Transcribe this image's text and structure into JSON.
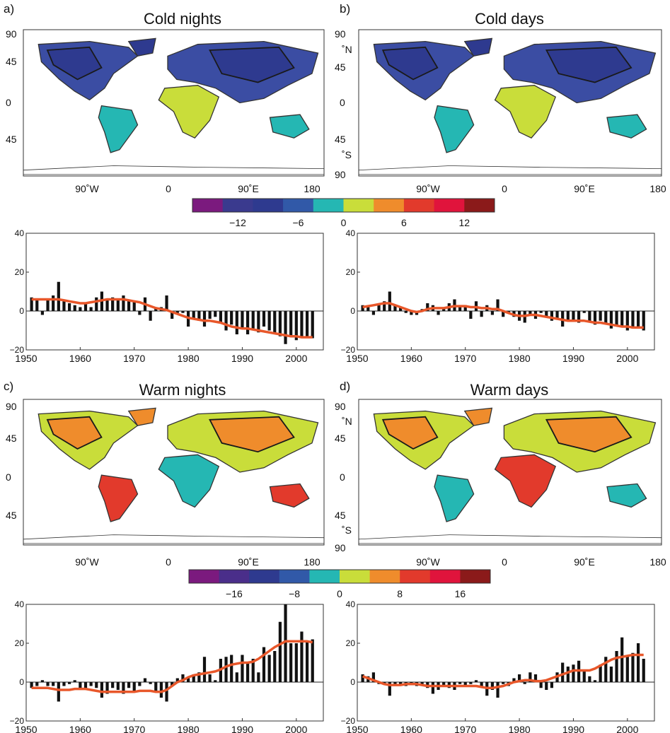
{
  "panels": [
    {
      "letter": "a)",
      "title": "Cold nights",
      "lat_labels": [
        "90",
        "45",
        "0",
        "45",
        ""
      ],
      "lon_labels": [
        "90˚W",
        "0",
        "90˚E",
        "180"
      ],
      "lat_side": "left",
      "map_colors": [
        "#3b4da3",
        "#2e3a8f",
        "#25b7b3",
        "#c9dd3a"
      ]
    },
    {
      "letter": "b)",
      "title": "Cold days",
      "lat_labels": [
        "90",
        "˚N",
        "45",
        "0",
        "45",
        "˚S",
        "90"
      ],
      "lon_labels": [
        "90˚W",
        "0",
        "90˚E",
        "180"
      ],
      "lat_side": "left",
      "map_colors": [
        "#3b4da3",
        "#2e3a8f",
        "#25b7b3",
        "#c9dd3a"
      ]
    },
    {
      "letter": "c)",
      "title": "Warm nights",
      "lat_labels": [
        "90",
        "45",
        "0",
        "45",
        ""
      ],
      "lon_labels": [
        "90˚W",
        "0",
        "90˚E",
        "180"
      ],
      "lat_side": "left",
      "map_colors": [
        "#c9dd3a",
        "#ef8c2c",
        "#e23a2c",
        "#25b7b3"
      ]
    },
    {
      "letter": "d)",
      "title": "Warm days",
      "lat_labels": [
        "90",
        "˚N",
        "45",
        "0",
        "45",
        "˚S",
        "90"
      ],
      "lon_labels": [
        "90˚W",
        "0",
        "90˚E",
        "180"
      ],
      "lat_side": "left",
      "map_colors": [
        "#c9dd3a",
        "#ef8c2c",
        "#25b7b3",
        "#e23a2c"
      ]
    }
  ],
  "colorbars": [
    {
      "colors": [
        "#7b1a7e",
        "#3a3a8e",
        "#2e3a8f",
        "#3159a8",
        "#25b7b3",
        "#c9dd3a",
        "#ef8c2c",
        "#e23a2c",
        "#e0143c",
        "#8b1a1a"
      ],
      "labels": [
        "−12",
        "−6",
        "0",
        "6",
        "12"
      ]
    },
    {
      "colors": [
        "#7b1a7e",
        "#4a2e8a",
        "#2e3a8f",
        "#3159a8",
        "#25b7b3",
        "#c9dd3a",
        "#ef8c2c",
        "#e23a2c",
        "#e0143c",
        "#8b1a1a"
      ],
      "labels": [
        "−16",
        "−8",
        "0",
        "8",
        "16"
      ]
    }
  ],
  "chart_data": [
    {
      "type": "bar",
      "panel": "a",
      "x": [
        1951,
        1952,
        1953,
        1954,
        1955,
        1956,
        1957,
        1958,
        1959,
        1960,
        1961,
        1962,
        1963,
        1964,
        1965,
        1966,
        1967,
        1968,
        1969,
        1970,
        1971,
        1972,
        1973,
        1974,
        1975,
        1976,
        1977,
        1978,
        1979,
        1980,
        1981,
        1982,
        1983,
        1984,
        1985,
        1986,
        1987,
        1988,
        1989,
        1990,
        1991,
        1992,
        1993,
        1994,
        1995,
        1996,
        1997,
        1998,
        1999,
        2000,
        2001,
        2002,
        2003
      ],
      "values": [
        7,
        6,
        -2,
        6,
        8,
        15,
        5,
        4,
        3,
        2,
        4,
        2,
        7,
        10,
        6,
        7,
        6,
        8,
        6,
        5,
        -2,
        7,
        -5,
        2,
        2,
        8,
        -4,
        -1,
        -1,
        -8,
        -4,
        -5,
        -8,
        -4,
        -3,
        -6,
        -10,
        -7,
        -12,
        -9,
        -12,
        -9,
        -11,
        -8,
        -10,
        -12,
        -13,
        -17,
        -13,
        -15,
        -13,
        -14,
        -14
      ],
      "smooth": [
        6,
        6,
        6,
        6,
        6,
        6,
        5.5,
        5,
        4.5,
        4,
        4,
        4.5,
        5,
        5.5,
        6,
        6,
        6,
        6,
        5.5,
        5,
        4.5,
        3.5,
        2.5,
        1.5,
        1,
        0.5,
        -0.5,
        -1.5,
        -2.5,
        -3.5,
        -4,
        -4.5,
        -5,
        -5,
        -5.5,
        -6,
        -7,
        -8,
        -8.5,
        -9,
        -9,
        -9.5,
        -10,
        -10.5,
        -11,
        -11.5,
        -12,
        -12.5,
        -13,
        -13,
        -13.5,
        -13.5,
        -13.5
      ],
      "xlim": [
        1950,
        2005
      ],
      "ylim": [
        -20,
        40
      ],
      "xticks": [
        1950,
        1960,
        1970,
        1980,
        1990,
        2000
      ],
      "yticks": [
        40,
        20,
        0,
        -20
      ]
    },
    {
      "type": "bar",
      "panel": "b",
      "x": [
        1951,
        1952,
        1953,
        1954,
        1955,
        1956,
        1957,
        1958,
        1959,
        1960,
        1961,
        1962,
        1963,
        1964,
        1965,
        1966,
        1967,
        1968,
        1969,
        1970,
        1971,
        1972,
        1973,
        1974,
        1975,
        1976,
        1977,
        1978,
        1979,
        1980,
        1981,
        1982,
        1983,
        1984,
        1985,
        1986,
        1987,
        1988,
        1989,
        1990,
        1991,
        1992,
        1993,
        1994,
        1995,
        1996,
        1997,
        1998,
        1999,
        2000,
        2001,
        2002,
        2003
      ],
      "values": [
        3,
        3,
        -2,
        4,
        5,
        10,
        3,
        2,
        -1,
        -2,
        -2,
        1,
        4,
        3,
        -2,
        2,
        4,
        6,
        2,
        3,
        -4,
        5,
        -3,
        3,
        -2,
        6,
        -3,
        -1,
        -3,
        -5,
        -6,
        -2,
        -4,
        -1,
        -3,
        -5,
        -4,
        -8,
        -5,
        -5,
        -6,
        -1,
        -6,
        -7,
        -5,
        -6,
        -9,
        -8,
        -8,
        -10,
        -9,
        -9,
        -10
      ],
      "smooth": [
        2,
        2.5,
        3,
        3.5,
        4,
        4,
        3,
        2,
        1,
        0,
        -0.5,
        0,
        1,
        1.5,
        1.5,
        1.5,
        2,
        2.5,
        2.5,
        2.5,
        2,
        2,
        1.5,
        1.5,
        1,
        1,
        0,
        -1,
        -2,
        -2.5,
        -2.5,
        -2,
        -2,
        -2.5,
        -3,
        -3.5,
        -4,
        -4.5,
        -5,
        -5,
        -5,
        -5,
        -5.5,
        -6,
        -6,
        -6.5,
        -7,
        -7.5,
        -8,
        -8,
        -8.5,
        -8.5,
        -8.5
      ],
      "xlim": [
        1950,
        2005
      ],
      "ylim": [
        -20,
        40
      ],
      "xticks": [
        1950,
        1960,
        1970,
        1980,
        1990,
        2000
      ],
      "yticks": [
        40,
        20,
        0,
        -20
      ]
    },
    {
      "type": "bar",
      "panel": "c",
      "x": [
        1951,
        1952,
        1953,
        1954,
        1955,
        1956,
        1957,
        1958,
        1959,
        1960,
        1961,
        1962,
        1963,
        1964,
        1965,
        1966,
        1967,
        1968,
        1969,
        1970,
        1971,
        1972,
        1973,
        1974,
        1975,
        1976,
        1977,
        1978,
        1979,
        1980,
        1981,
        1982,
        1983,
        1984,
        1985,
        1986,
        1987,
        1988,
        1989,
        1990,
        1991,
        1992,
        1993,
        1994,
        1995,
        1996,
        1997,
        1998,
        1999,
        2000,
        2001,
        2002,
        2003
      ],
      "values": [
        -3,
        -2,
        1,
        -2,
        -2,
        -10,
        -2,
        -1,
        1,
        -3,
        -3,
        -2,
        -3,
        -8,
        -6,
        -3,
        -4,
        -6,
        -3,
        -5,
        -2,
        2,
        -1,
        -5,
        -8,
        -10,
        -2,
        2,
        4,
        2,
        4,
        5,
        13,
        4,
        1,
        12,
        13,
        14,
        5,
        14,
        10,
        12,
        5,
        18,
        14,
        16,
        31,
        40,
        20,
        20,
        26,
        21,
        22
      ],
      "smooth": [
        -3,
        -3,
        -3,
        -3,
        -3.5,
        -4,
        -4,
        -4,
        -3.5,
        -3.5,
        -3.5,
        -4,
        -4.5,
        -5,
        -5,
        -5,
        -5,
        -5,
        -5,
        -5,
        -4.5,
        -4.5,
        -4.5,
        -5,
        -5,
        -4,
        -2,
        0,
        1,
        2.5,
        3.5,
        4,
        4.5,
        5,
        5.5,
        6.5,
        8,
        9,
        9.5,
        10,
        10,
        10.5,
        12,
        14,
        16,
        18,
        19.5,
        21,
        21,
        21,
        21,
        21,
        20.5
      ],
      "xlim": [
        1950,
        2005
      ],
      "ylim": [
        -20,
        40
      ],
      "xticks": [
        1950,
        1960,
        1970,
        1980,
        1990,
        2000
      ],
      "yticks": [
        40,
        20,
        0,
        -20
      ]
    },
    {
      "type": "bar",
      "panel": "d",
      "x": [
        1951,
        1952,
        1953,
        1954,
        1955,
        1956,
        1957,
        1958,
        1959,
        1960,
        1961,
        1962,
        1963,
        1964,
        1965,
        1966,
        1967,
        1968,
        1969,
        1970,
        1971,
        1972,
        1973,
        1974,
        1975,
        1976,
        1977,
        1978,
        1979,
        1980,
        1981,
        1982,
        1983,
        1984,
        1985,
        1986,
        1987,
        1988,
        1989,
        1990,
        1991,
        1992,
        1993,
        1994,
        1995,
        1996,
        1997,
        1998,
        1999,
        2000,
        2001,
        2002,
        2003
      ],
      "values": [
        4,
        3,
        5,
        -1,
        -1,
        -7,
        -2,
        -1,
        -2,
        -1,
        -2,
        -1,
        -3,
        -6,
        -4,
        -2,
        -3,
        -4,
        -1,
        -2,
        -1,
        1,
        -2,
        -7,
        -4,
        -8,
        -1,
        -2,
        2,
        4,
        -1,
        5,
        4,
        -3,
        -4,
        -3,
        5,
        10,
        8,
        9,
        11,
        6,
        3,
        1,
        9,
        13,
        8,
        16,
        23,
        14,
        15,
        20,
        12
      ],
      "smooth": [
        3,
        2,
        1,
        0,
        -1,
        -1.5,
        -1.5,
        -1.5,
        -1,
        -1,
        -1,
        -1.5,
        -2,
        -2,
        -2,
        -2,
        -2,
        -2,
        -2,
        -2,
        -2,
        -2,
        -2.5,
        -3,
        -3,
        -2.5,
        -2,
        -1,
        0,
        0.5,
        1,
        1,
        0.5,
        0.5,
        1,
        2,
        3,
        4,
        5,
        6,
        6,
        6,
        6,
        7,
        8.5,
        10,
        11.5,
        12.5,
        13,
        13.5,
        14,
        14,
        14
      ],
      "xlim": [
        1950,
        2005
      ],
      "ylim": [
        -20,
        40
      ],
      "xticks": [
        1950,
        1960,
        1970,
        1980,
        1990,
        2000
      ],
      "yticks": [
        40,
        20,
        0,
        -20
      ]
    }
  ],
  "colors": {
    "bar": "#111111",
    "smooth": "#e8572a",
    "map_border": "#1a1a1a",
    "coast": "#333333"
  }
}
